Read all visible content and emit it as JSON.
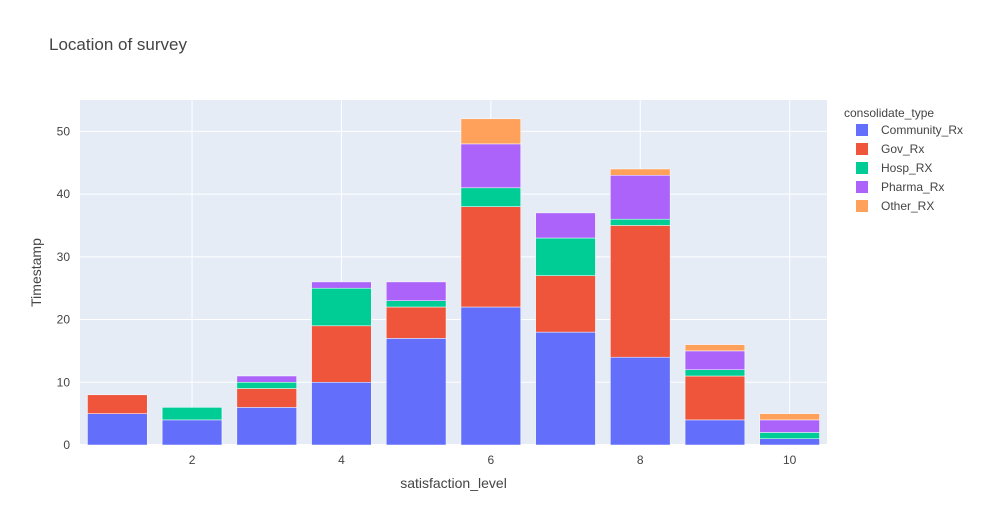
{
  "chart_data": {
    "type": "bar",
    "stacked": true,
    "title": "Location of survey",
    "xlabel": "satisfaction_level",
    "ylabel": "Timestamp",
    "x": [
      1,
      2,
      3,
      4,
      5,
      6,
      7,
      8,
      9,
      10
    ],
    "xticks": [
      2,
      4,
      6,
      8,
      10
    ],
    "xlim": [
      0.5,
      10.5
    ],
    "yticks": [
      0,
      10,
      20,
      30,
      40,
      50
    ],
    "ylim": [
      0,
      55
    ],
    "grid": true,
    "legend": {
      "title": "consolidate_type",
      "position": "right"
    },
    "series": [
      {
        "name": "Community_Rx",
        "color": "#636efa",
        "values": [
          5,
          4,
          6,
          10,
          17,
          22,
          18,
          14,
          4,
          1
        ]
      },
      {
        "name": "Gov_Rx",
        "color": "#ef553b",
        "values": [
          3,
          0,
          3,
          9,
          5,
          16,
          9,
          21,
          7,
          0
        ]
      },
      {
        "name": "Hosp_RX",
        "color": "#00cc96",
        "values": [
          0,
          2,
          1,
          6,
          1,
          3,
          6,
          1,
          1,
          1
        ]
      },
      {
        "name": "Pharma_Rx",
        "color": "#ab63fa",
        "values": [
          0,
          0,
          1,
          1,
          3,
          7,
          4,
          7,
          3,
          2
        ]
      },
      {
        "name": "Other_RX",
        "color": "#ffa15a",
        "values": [
          0,
          0,
          0,
          0,
          0,
          4,
          0,
          1,
          1,
          1
        ]
      }
    ]
  }
}
